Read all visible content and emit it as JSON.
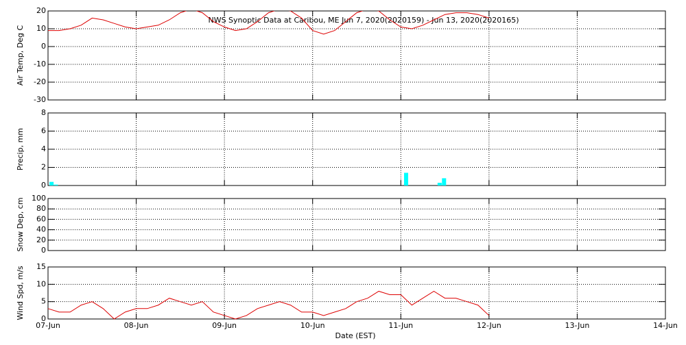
{
  "chart_data": [
    {
      "type": "line",
      "title": "NWS Synoptic Data at Caribou, ME   Jun  7, 2020(2020159) - Jun 13, 2020(2020165)",
      "y_label": "Air Temp, Deg C",
      "color": "#dd0000",
      "ylim": [
        -30,
        20
      ],
      "yticks": [
        -30,
        -20,
        -10,
        0,
        10,
        20
      ],
      "grid": true,
      "x": [
        0,
        0.125,
        0.25,
        0.375,
        0.5,
        0.625,
        0.75,
        0.875,
        1,
        1.125,
        1.25,
        1.375,
        1.5,
        1.625,
        1.75,
        1.875,
        2,
        2.125,
        2.25,
        2.375,
        2.5,
        2.625,
        2.75,
        2.875,
        3,
        3.125,
        3.25,
        3.375,
        3.5,
        3.625,
        3.75,
        3.875,
        4,
        4.125,
        4.25,
        4.375,
        4.5,
        4.625,
        4.75,
        4.875,
        5
      ],
      "values": [
        9,
        9,
        10,
        12,
        16,
        15,
        13,
        11,
        10,
        11,
        12,
        15,
        19,
        21,
        19,
        14,
        11,
        9,
        10,
        14,
        19,
        21,
        20,
        16,
        9,
        7,
        9,
        14,
        19,
        21,
        20,
        15,
        11,
        10,
        12,
        15,
        18,
        19,
        19,
        18,
        16
      ]
    },
    {
      "type": "bar",
      "y_label": "Precip, mm",
      "color": "#00ffff",
      "ylim": [
        0,
        8
      ],
      "yticks": [
        0,
        2,
        4,
        6,
        8
      ],
      "grid": true,
      "x": [
        0.04,
        0.09,
        4.06,
        4.44,
        4.49
      ],
      "values": [
        0.4,
        0.1,
        1.4,
        0.3,
        0.8
      ]
    },
    {
      "type": "line",
      "y_label": "Snow Dep, cm",
      "color": "#dd0000",
      "ylim": [
        0,
        100
      ],
      "yticks": [
        0,
        20,
        40,
        60,
        80,
        100
      ],
      "grid": true,
      "x": [],
      "values": []
    },
    {
      "type": "line",
      "y_label": "Wind Spd, m/s",
      "x_label": "Date (EST)",
      "color": "#dd0000",
      "ylim": [
        0,
        15
      ],
      "yticks": [
        0,
        5,
        10,
        15
      ],
      "grid": true,
      "xlim": [
        0,
        7
      ],
      "xticks": [
        {
          "value": 0,
          "label": "07-Jun"
        },
        {
          "value": 1,
          "label": "08-Jun"
        },
        {
          "value": 2,
          "label": "09-Jun"
        },
        {
          "value": 3,
          "label": "10-Jun"
        },
        {
          "value": 4,
          "label": "11-Jun"
        },
        {
          "value": 5,
          "label": "12-Jun"
        },
        {
          "value": 6,
          "label": "13-Jun"
        },
        {
          "value": 7,
          "label": "14-Jun"
        }
      ],
      "x": [
        0,
        0.125,
        0.25,
        0.375,
        0.5,
        0.625,
        0.75,
        0.875,
        1,
        1.125,
        1.25,
        1.375,
        1.5,
        1.625,
        1.75,
        1.875,
        2,
        2.125,
        2.25,
        2.375,
        2.5,
        2.625,
        2.75,
        2.875,
        3,
        3.125,
        3.25,
        3.375,
        3.5,
        3.625,
        3.75,
        3.875,
        4,
        4.125,
        4.25,
        4.375,
        4.5,
        4.625,
        4.75,
        4.875,
        5
      ],
      "values": [
        3,
        2,
        2,
        4,
        5,
        3,
        0,
        2,
        3,
        3,
        4,
        6,
        5,
        4,
        5,
        2,
        1,
        0,
        1,
        3,
        4,
        5,
        4,
        2,
        2,
        1,
        2,
        3,
        5,
        6,
        8,
        7,
        7,
        4,
        6,
        8,
        6,
        6,
        5,
        4,
        1
      ]
    }
  ]
}
